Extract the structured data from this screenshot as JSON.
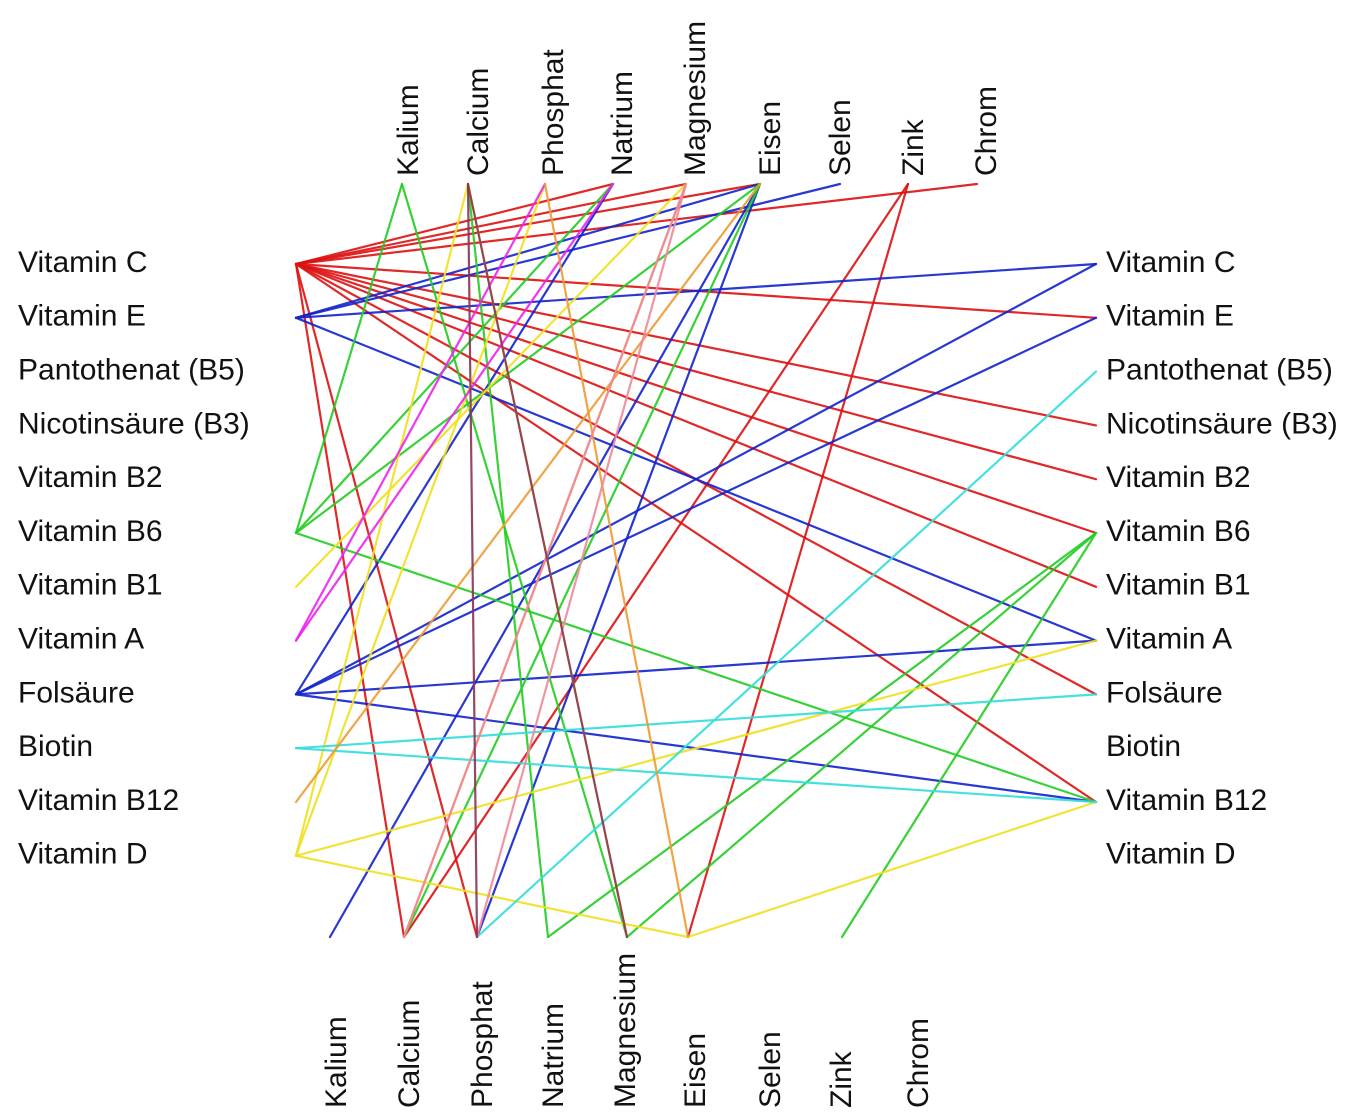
{
  "diagram": {
    "left_labels": [
      "Vitamin C",
      "Vitamin E",
      "Pantothenat (B5)",
      "Nicotinsäure (B3)",
      "Vitamin B2",
      "Vitamin B6",
      "Vitamin B1",
      "Vitamin A",
      "Folsäure",
      "Biotin",
      "Vitamin B12",
      "Vitamin D"
    ],
    "right_labels": [
      "Vitamin C",
      "Vitamin E",
      "Pantothenat (B5)",
      "Nicotinsäure (B3)",
      "Vitamin B2",
      "Vitamin B6",
      "Vitamin B1",
      "Vitamin A",
      "Folsäure",
      "Biotin",
      "Vitamin B12",
      "Vitamin D"
    ],
    "top_labels": [
      "Kalium",
      "Calcium",
      "Phosphat",
      "Natrium",
      "Magnesium",
      "Eisen",
      "Selen",
      "Zink",
      "Chrom"
    ],
    "bottom_labels": [
      "Kalium",
      "Calcium",
      "Phosphat",
      "Natrium",
      "Magnesium",
      "Eisen",
      "Selen",
      "Zink",
      "Chrom"
    ],
    "colors": {
      "red": "#dd1111",
      "blue": "#1122cc",
      "green": "#22cc22",
      "yellow": "#f0e020",
      "cyan": "#33dddd",
      "magenta": "#ee22ee",
      "orange": "#ee9933",
      "pink": "#ee8899",
      "purple": "#883355"
    },
    "edges": [
      {
        "from": "L:Vitamin C",
        "to": "T:Magnesium",
        "color": "red"
      },
      {
        "from": "L:Vitamin C",
        "to": "T:Eisen",
        "color": "red"
      },
      {
        "from": "L:Vitamin C",
        "to": "T:Natrium",
        "color": "red"
      },
      {
        "from": "L:Vitamin C",
        "to": "T:Chrom",
        "color": "red"
      },
      {
        "from": "L:Vitamin C",
        "to": "R:Vitamin E",
        "color": "red"
      },
      {
        "from": "L:Vitamin C",
        "to": "R:Nicotinsäure (B3)",
        "color": "red"
      },
      {
        "from": "L:Vitamin C",
        "to": "R:Vitamin B2",
        "color": "red"
      },
      {
        "from": "L:Vitamin C",
        "to": "R:Vitamin B6",
        "color": "red"
      },
      {
        "from": "L:Vitamin C",
        "to": "R:Vitamin B1",
        "color": "red"
      },
      {
        "from": "L:Vitamin C",
        "to": "R:Folsäure",
        "color": "red"
      },
      {
        "from": "L:Vitamin C",
        "to": "R:Vitamin B12",
        "color": "red"
      },
      {
        "from": "L:Vitamin C",
        "to": "B:Calcium",
        "color": "red"
      },
      {
        "from": "L:Vitamin C",
        "to": "B:Phosphat",
        "color": "red"
      },
      {
        "from": "T:Zink",
        "to": "B:Calcium",
        "color": "red"
      },
      {
        "from": "T:Zink",
        "to": "B:Eisen",
        "color": "red"
      },
      {
        "from": "L:Vitamin E",
        "to": "T:Eisen",
        "color": "blue"
      },
      {
        "from": "L:Vitamin E",
        "to": "T:Selen",
        "color": "blue"
      },
      {
        "from": "L:Vitamin E",
        "to": "R:Vitamin C",
        "color": "blue"
      },
      {
        "from": "L:Vitamin E",
        "to": "R:Vitamin A",
        "color": "blue"
      },
      {
        "from": "L:Folsäure",
        "to": "R:Vitamin E",
        "color": "blue"
      },
      {
        "from": "L:Folsäure",
        "to": "R:Vitamin C",
        "color": "blue"
      },
      {
        "from": "L:Folsäure",
        "to": "R:Vitamin A",
        "color": "blue"
      },
      {
        "from": "L:Folsäure",
        "to": "R:Vitamin B12",
        "color": "blue"
      },
      {
        "from": "L:Folsäure",
        "to": "T:Natrium",
        "color": "blue"
      },
      {
        "from": "T:Eisen",
        "to": "B:Kalium",
        "color": "blue"
      },
      {
        "from": "T:Eisen",
        "to": "B:Phosphat",
        "color": "blue"
      },
      {
        "from": "L:Vitamin B6",
        "to": "T:Kalium",
        "color": "green"
      },
      {
        "from": "L:Vitamin B6",
        "to": "T:Eisen",
        "color": "green"
      },
      {
        "from": "L:Vitamin B6",
        "to": "T:Natrium",
        "color": "green"
      },
      {
        "from": "L:Vitamin B6",
        "to": "R:Vitamin B12",
        "color": "green"
      },
      {
        "from": "T:Kalium",
        "to": "B:Magnesium",
        "color": "green"
      },
      {
        "from": "T:Calcium",
        "to": "B:Natrium",
        "color": "green"
      },
      {
        "from": "R:Vitamin B6",
        "to": "B:Natrium",
        "color": "green"
      },
      {
        "from": "R:Vitamin B6",
        "to": "B:Magnesium",
        "color": "green"
      },
      {
        "from": "R:Vitamin B6",
        "to": "B:Zink",
        "color": "green"
      },
      {
        "from": "T:Eisen",
        "to": "B:Calcium",
        "color": "green"
      },
      {
        "from": "L:Vitamin B1",
        "to": "T:Magnesium",
        "color": "yellow"
      },
      {
        "from": "L:Vitamin D",
        "to": "T:Phosphat",
        "color": "yellow"
      },
      {
        "from": "L:Vitamin D",
        "to": "T:Calcium",
        "color": "yellow"
      },
      {
        "from": "L:Vitamin D",
        "to": "R:Vitamin A",
        "color": "yellow"
      },
      {
        "from": "L:Vitamin D",
        "to": "B:Eisen",
        "color": "yellow"
      },
      {
        "from": "B:Eisen",
        "to": "R:Vitamin B12",
        "color": "yellow"
      },
      {
        "from": "T:Calcium",
        "to": "B:Magnesium",
        "color": "yellow"
      },
      {
        "from": "L:Biotin",
        "to": "R:Folsäure",
        "color": "cyan"
      },
      {
        "from": "L:Biotin",
        "to": "R:Vitamin B12",
        "color": "cyan"
      },
      {
        "from": "B:Phosphat",
        "to": "R:Pantothenat (B5)",
        "color": "cyan"
      },
      {
        "from": "L:Vitamin A",
        "to": "T:Phosphat",
        "color": "magenta"
      },
      {
        "from": "L:Vitamin A",
        "to": "T:Natrium",
        "color": "magenta"
      },
      {
        "from": "L:Vitamin B12",
        "to": "T:Eisen",
        "color": "orange"
      },
      {
        "from": "T:Phosphat",
        "to": "B:Eisen",
        "color": "orange"
      },
      {
        "from": "T:Magnesium",
        "to": "B:Calcium",
        "color": "orange"
      },
      {
        "from": "T:Magnesium",
        "to": "B:Phosphat",
        "color": "pink"
      },
      {
        "from": "T:Magnesium",
        "to": "B:Calcium",
        "color": "pink"
      },
      {
        "from": "T:Calcium",
        "to": "B:Phosphat",
        "color": "purple"
      },
      {
        "from": "T:Calcium",
        "to": "B:Magnesium",
        "color": "purple"
      }
    ]
  }
}
